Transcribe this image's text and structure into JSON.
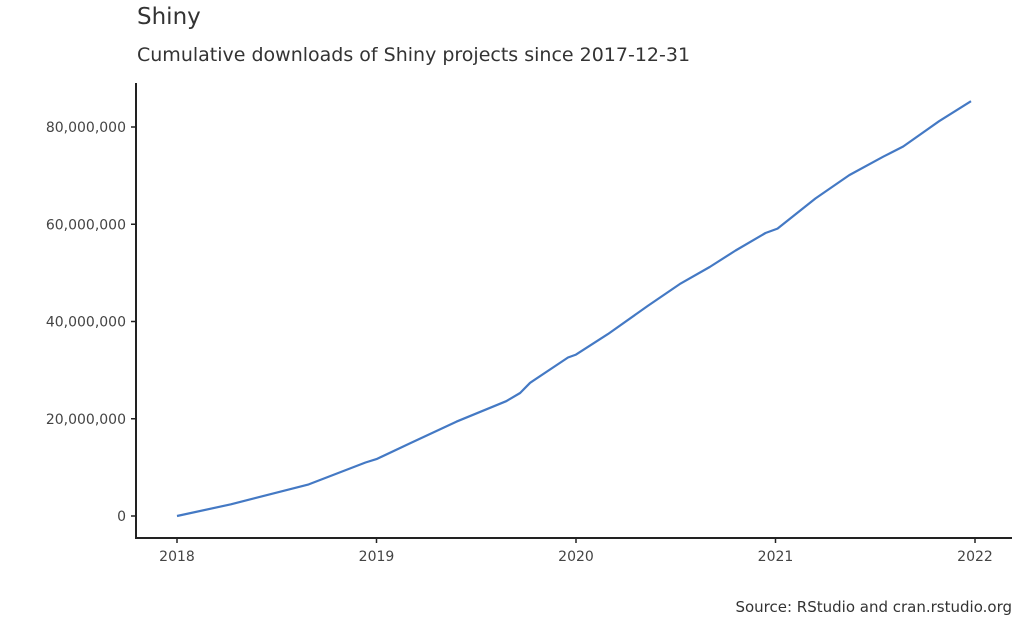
{
  "chart_data": {
    "type": "line",
    "title": "Shiny",
    "subtitle": "Cumulative downloads of Shiny projects since 2017-12-31",
    "caption": "Source: RStudio and cran.rstudio.org",
    "xlabel": "",
    "ylabel": "",
    "xlim": [
      2018,
      2022
    ],
    "ylim": [
      0,
      85000000
    ],
    "x_ticks": [
      2018,
      2019,
      2020,
      2021,
      2022
    ],
    "x_tick_labels": [
      "2018",
      "2019",
      "2020",
      "2021",
      "2022"
    ],
    "y_ticks": [
      0,
      20000000,
      40000000,
      60000000,
      80000000
    ],
    "y_tick_labels": [
      "0",
      "20,000,000",
      "40,000,000",
      "60,000,000",
      "80,000,000"
    ],
    "grid": false,
    "line_color": "#4479c4",
    "series": [
      {
        "x": [
          2018.0,
          2018.27,
          2018.66,
          2018.945,
          2019.0,
          2019.17,
          2019.4,
          2019.65,
          2019.72,
          2019.77,
          2019.96,
          2020.0,
          2020.16,
          2020.36,
          2020.52,
          2020.67,
          2020.8,
          2020.95,
          2021.01,
          2021.2,
          2021.37,
          2021.54,
          2021.64,
          2021.82,
          2021.98
        ],
        "y": [
          0,
          2400000,
          6500000,
          11000000,
          11700000,
          15000000,
          19400000,
          23600000,
          25300000,
          27400000,
          32600000,
          33200000,
          37400000,
          43200000,
          47700000,
          51200000,
          54600000,
          58200000,
          59100000,
          65300000,
          70100000,
          73900000,
          76000000,
          81200000,
          85300000
        ]
      }
    ]
  }
}
